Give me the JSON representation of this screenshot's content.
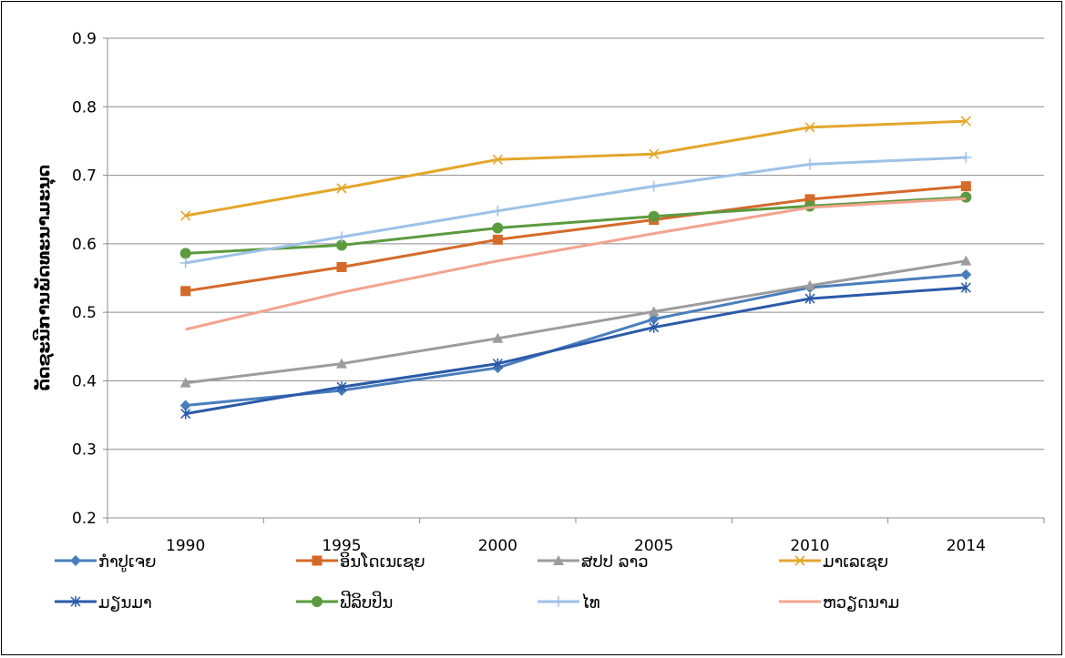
{
  "chart_data": {
    "type": "line",
    "title": "",
    "xlabel": "",
    "ylabel": "ດັດຊະນີການພັດທະນາມະນຸດ",
    "categories": [
      "1990",
      "1995",
      "2000",
      "2005",
      "2010",
      "2014"
    ],
    "ylim": [
      0.2,
      0.9
    ],
    "yticks": [
      "0.2",
      "0.3",
      "0.4",
      "0.5",
      "0.6",
      "0.7",
      "0.8",
      "0.9"
    ],
    "grid": true,
    "legend_position": "bottom",
    "series": [
      {
        "name": "ກຳປູເຈຍ",
        "color": "#4A7EBB",
        "marker": "diamond",
        "values": [
          0.364,
          0.386,
          0.419,
          0.49,
          0.536,
          0.555
        ]
      },
      {
        "name": "ອິນໂດເນເຊຍ",
        "color": "#D46A2A",
        "marker": "square",
        "values": [
          0.531,
          0.566,
          0.606,
          0.635,
          0.665,
          0.684
        ]
      },
      {
        "name": "ສປປ ລາວ",
        "color": "#9C9C9C",
        "marker": "triangle",
        "values": [
          0.397,
          0.425,
          0.462,
          0.501,
          0.539,
          0.575
        ]
      },
      {
        "name": "ມາເລເຊຍ",
        "color": "#E3A62B",
        "marker": "x",
        "values": [
          0.641,
          0.681,
          0.723,
          0.731,
          0.77,
          0.779
        ]
      },
      {
        "name": "ມຽນມາ",
        "color": "#2B5AA8",
        "marker": "star",
        "values": [
          0.352,
          0.391,
          0.425,
          0.478,
          0.52,
          0.536
        ]
      },
      {
        "name": "ຟີລິບປິນ",
        "color": "#5B9A3F",
        "marker": "circle",
        "values": [
          0.586,
          0.598,
          0.623,
          0.64,
          0.655,
          0.668
        ]
      },
      {
        "name": "ໄທ",
        "color": "#9EC1E7",
        "marker": "plus",
        "values": [
          0.572,
          0.61,
          0.648,
          0.684,
          0.716,
          0.726
        ]
      },
      {
        "name": "ຫວຽດນາມ",
        "color": "#F2A48E",
        "marker": "none",
        "values": [
          0.475,
          0.529,
          0.575,
          0.615,
          0.653,
          0.666
        ]
      }
    ]
  }
}
